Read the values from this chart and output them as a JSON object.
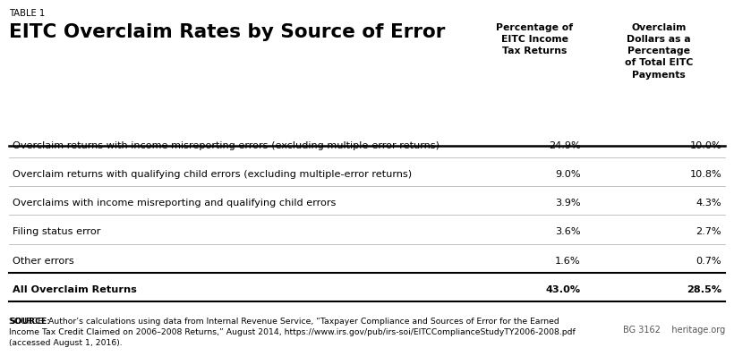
{
  "table_label": "TABLE 1",
  "title": "EITC Overclaim Rates by Source of Error",
  "col1_header": "Percentage of\nEITC Income\nTax Returns",
  "col2_header": "Overclaim\nDollars as a\nPercentage\nof Total EITC\nPayments",
  "rows": [
    {
      "label": "Overclaim returns with income misreporting errors (excluding multiple-error returns)",
      "col1": "24.9%",
      "col2": "10.0%",
      "bold": false
    },
    {
      "label": "Overclaim returns with qualifying child errors (excluding multiple-error returns)",
      "col1": "9.0%",
      "col2": "10.8%",
      "bold": false
    },
    {
      "label": "Overclaims with income misreporting and qualifying child errors",
      "col1": "3.9%",
      "col2": "4.3%",
      "bold": false
    },
    {
      "label": "Filing status error",
      "col1": "3.6%",
      "col2": "2.7%",
      "bold": false
    },
    {
      "label": "Other errors",
      "col1": "1.6%",
      "col2": "0.7%",
      "bold": false
    },
    {
      "label": "All Overclaim Returns",
      "col1": "43.0%",
      "col2": "28.5%",
      "bold": true
    }
  ],
  "source_text": "SOURCE: Author’s calculations using data from Internal Revenue Service, “Taxpayer Compliance and Sources of Error for the Earned\nIncome Tax Credit Claimed on 2006–2008 Returns,” August 2014, https://www.irs.gov/pub/irs-soi/EITCComplianceStudyTY2006-2008.pdf\n(accessed August 1, 2016).",
  "footnote": "BG 3162    heritage.org",
  "bg_color": "#ffffff",
  "text_color": "#000000",
  "line_color": "#000000",
  "separator_color": "#aaaaaa"
}
